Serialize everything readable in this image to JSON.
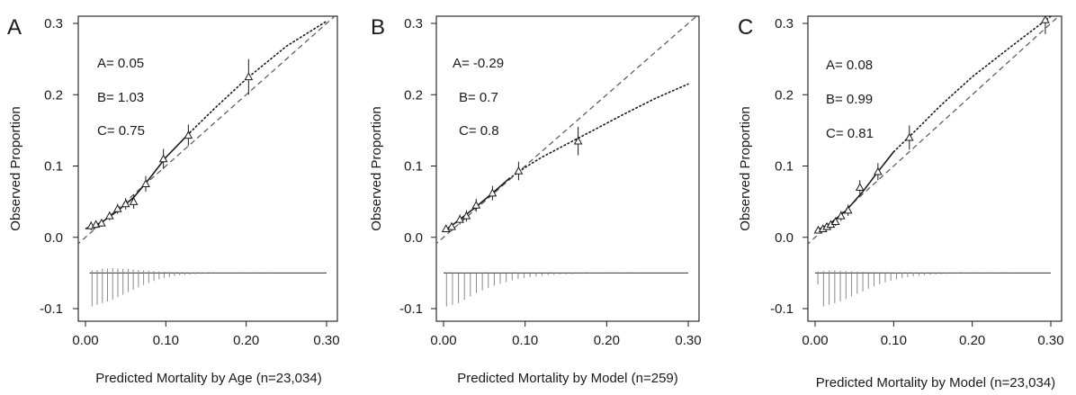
{
  "chart_data": [
    {
      "type": "scatter",
      "panel_letter": "A",
      "xlabel": "Predicted Mortality by Age (n=23,034)",
      "ylabel": "Observed Proportion",
      "xlim": [
        0,
        0.3
      ],
      "ylim": [
        -0.1,
        0.3
      ],
      "x_ticks": [
        "0.00",
        "0.10",
        "0.20",
        "0.30"
      ],
      "y_ticks": [
        "-0.1",
        "0.0",
        "0.1",
        "0.2",
        "0.3"
      ],
      "stats": [
        "A= 0.05",
        "B= 1.03",
        "C= 0.75"
      ],
      "points": [
        {
          "x": 0.007,
          "y": 0.016,
          "err": 0.006
        },
        {
          "x": 0.013,
          "y": 0.018,
          "err": 0.005
        },
        {
          "x": 0.02,
          "y": 0.02,
          "err": 0.005
        },
        {
          "x": 0.03,
          "y": 0.03,
          "err": 0.006
        },
        {
          "x": 0.04,
          "y": 0.04,
          "err": 0.007
        },
        {
          "x": 0.05,
          "y": 0.047,
          "err": 0.008
        },
        {
          "x": 0.06,
          "y": 0.05,
          "err": 0.01
        },
        {
          "x": 0.075,
          "y": 0.075,
          "err": 0.011
        },
        {
          "x": 0.097,
          "y": 0.11,
          "err": 0.014
        },
        {
          "x": 0.128,
          "y": 0.143,
          "err": 0.015
        },
        {
          "x": 0.203,
          "y": 0.225,
          "err": 0.025
        }
      ],
      "smooth_curve": [
        [
          0.0,
          0.012
        ],
        [
          0.02,
          0.021
        ],
        [
          0.04,
          0.037
        ],
        [
          0.06,
          0.056
        ],
        [
          0.08,
          0.083
        ],
        [
          0.1,
          0.112
        ],
        [
          0.13,
          0.147
        ],
        [
          0.16,
          0.18
        ],
        [
          0.2,
          0.222
        ],
        [
          0.25,
          0.268
        ],
        [
          0.3,
          0.303
        ]
      ],
      "solid_until_x": 0.13,
      "histogram": {
        "x_range": [
          0.005,
          0.3
        ],
        "up": [
          0.5,
          0.6,
          0.8,
          0.9,
          1.0,
          0.9,
          0.85,
          0.8,
          0.7,
          0.6,
          0.5,
          0.4,
          0.35,
          0.3,
          0.25,
          0.2,
          0.15,
          0.12,
          0.1,
          0.08,
          0.06,
          0.05,
          0.04,
          0.03,
          0.02,
          0.02,
          0.01
        ],
        "down": [
          1.0,
          0.95,
          0.9,
          0.85,
          0.8,
          0.72,
          0.65,
          0.57,
          0.5,
          0.43,
          0.36,
          0.3,
          0.24,
          0.19,
          0.15,
          0.12,
          0.09,
          0.07,
          0.055,
          0.04,
          0.03,
          0.025,
          0.02,
          0.015,
          0.01,
          0.01,
          0.01,
          0.008,
          0.006,
          0.005,
          0.004,
          0.003,
          0.003,
          0.002,
          0.002,
          0.002,
          0.001,
          0.001,
          0.001,
          0.001,
          0.001,
          0.001,
          0.001,
          0.001,
          0.001,
          0.001
        ]
      }
    },
    {
      "type": "scatter",
      "panel_letter": "B",
      "xlabel": "Predicted Mortality by Model (n=259)",
      "ylabel": "Observed Proportion",
      "xlim": [
        0,
        0.3
      ],
      "ylim": [
        -0.1,
        0.3
      ],
      "x_ticks": [
        "0.00",
        "0.10",
        "0.20",
        "0.30"
      ],
      "y_ticks": [
        "-0.1",
        "0.0",
        "0.1",
        "0.2",
        "0.3"
      ],
      "stats": [
        "A= -0.29",
        "B= 0.7",
        "C= 0.8"
      ],
      "points": [
        {
          "x": 0.003,
          "y": 0.012,
          "err": 0.005
        },
        {
          "x": 0.01,
          "y": 0.015,
          "err": 0.006
        },
        {
          "x": 0.02,
          "y": 0.025,
          "err": 0.007
        },
        {
          "x": 0.028,
          "y": 0.03,
          "err": 0.008
        },
        {
          "x": 0.04,
          "y": 0.045,
          "err": 0.009
        },
        {
          "x": 0.06,
          "y": 0.062,
          "err": 0.01
        },
        {
          "x": 0.092,
          "y": 0.093,
          "err": 0.013
        },
        {
          "x": 0.165,
          "y": 0.135,
          "err": 0.02
        }
      ],
      "smooth_curve": [
        [
          0.0,
          0.008
        ],
        [
          0.02,
          0.025
        ],
        [
          0.04,
          0.043
        ],
        [
          0.06,
          0.062
        ],
        [
          0.08,
          0.082
        ],
        [
          0.1,
          0.098
        ],
        [
          0.12,
          0.112
        ],
        [
          0.15,
          0.13
        ],
        [
          0.18,
          0.148
        ],
        [
          0.22,
          0.172
        ],
        [
          0.26,
          0.195
        ],
        [
          0.3,
          0.215
        ]
      ],
      "solid_until_x": 0.095,
      "histogram": {
        "x_range": [
          0.0,
          0.3
        ],
        "up": [],
        "down": [
          1.0,
          0.95,
          0.9,
          0.8,
          0.7,
          0.6,
          0.52,
          0.45,
          0.38,
          0.32,
          0.27,
          0.22,
          0.18,
          0.15,
          0.12,
          0.1,
          0.08,
          0.065,
          0.05,
          0.04,
          0.035,
          0.03,
          0.025,
          0.02,
          0.015,
          0.012,
          0.01,
          0.008,
          0.006,
          0.005,
          0.004,
          0.003,
          0.003,
          0.002,
          0.002,
          0.001,
          0.001,
          0.001,
          0.001,
          0.001,
          0.001
        ]
      }
    },
    {
      "type": "scatter",
      "panel_letter": "C",
      "xlabel": "Predicted Mortality by Model (n=23,034)",
      "ylabel": "Observed Proportion",
      "xlim": [
        0,
        0.3
      ],
      "ylim": [
        -0.1,
        0.3
      ],
      "x_ticks": [
        "0.00",
        "0.10",
        "0.20",
        "0.30"
      ],
      "y_ticks": [
        "-0.1",
        "0.0",
        "0.1",
        "0.2",
        "0.3"
      ],
      "stats": [
        "A= 0.08",
        "B= 0.99",
        "C= 0.81"
      ],
      "points": [
        {
          "x": 0.004,
          "y": 0.01,
          "err": 0.004
        },
        {
          "x": 0.01,
          "y": 0.012,
          "err": 0.004
        },
        {
          "x": 0.015,
          "y": 0.015,
          "err": 0.005
        },
        {
          "x": 0.02,
          "y": 0.018,
          "err": 0.005
        },
        {
          "x": 0.026,
          "y": 0.022,
          "err": 0.006
        },
        {
          "x": 0.033,
          "y": 0.03,
          "err": 0.007
        },
        {
          "x": 0.042,
          "y": 0.038,
          "err": 0.008
        },
        {
          "x": 0.057,
          "y": 0.07,
          "err": 0.01
        },
        {
          "x": 0.08,
          "y": 0.092,
          "err": 0.012
        },
        {
          "x": 0.12,
          "y": 0.14,
          "err": 0.017
        },
        {
          "x": 0.293,
          "y": 0.305,
          "err": 0.02
        }
      ],
      "smooth_curve": [
        [
          0.0,
          0.008
        ],
        [
          0.02,
          0.02
        ],
        [
          0.04,
          0.038
        ],
        [
          0.06,
          0.063
        ],
        [
          0.08,
          0.092
        ],
        [
          0.1,
          0.12
        ],
        [
          0.13,
          0.152
        ],
        [
          0.16,
          0.185
        ],
        [
          0.2,
          0.225
        ],
        [
          0.25,
          0.268
        ],
        [
          0.3,
          0.31
        ]
      ],
      "solid_until_x": 0.12,
      "histogram": {
        "x_range": [
          0.0,
          0.3
        ],
        "up": [
          0.3,
          0.4,
          0.5,
          0.5,
          0.45,
          0.4,
          0.35,
          0.3,
          0.25,
          0.2,
          0.18,
          0.15,
          0.12,
          0.1,
          0.08,
          0.06,
          0.05,
          0.04,
          0.03,
          0.02
        ],
        "down": [
          0.35,
          1.0,
          0.95,
          0.9,
          0.85,
          0.78,
          0.7,
          0.62,
          0.55,
          0.47,
          0.4,
          0.34,
          0.28,
          0.23,
          0.19,
          0.15,
          0.12,
          0.1,
          0.08,
          0.065,
          0.05,
          0.04,
          0.03,
          0.025,
          0.02,
          0.015,
          0.012,
          0.01,
          0.008,
          0.006,
          0.005,
          0.004,
          0.003,
          0.003,
          0.002,
          0.002,
          0.001,
          0.001,
          0.001,
          0.001,
          0.001,
          0.001
        ]
      }
    }
  ]
}
